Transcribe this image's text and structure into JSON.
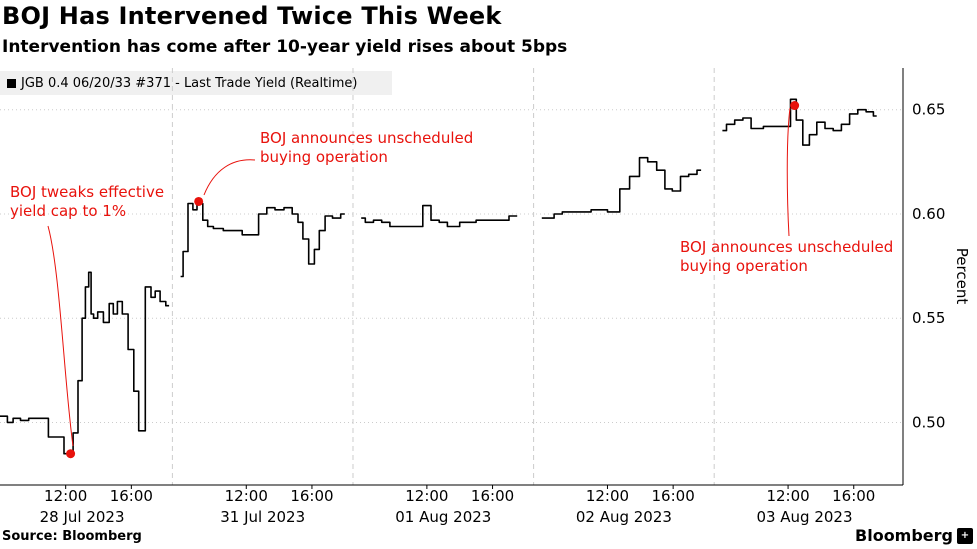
{
  "header": {
    "title": "BOJ Has Intervened Twice This Week",
    "subtitle": "Intervention has come after 10-year yield rises about 5bps"
  },
  "legend": {
    "label": "JGB 0.4 06/20/33 #371 - Last Trade Yield (Realtime)"
  },
  "footer": {
    "source": "Source: Bloomberg",
    "brand": "Bloomberg",
    "brand_mark": "+"
  },
  "colors": {
    "line": "#000000",
    "annotation": "#e8120c",
    "grid": "#cccccc"
  },
  "chart_data": {
    "type": "line",
    "title": "BOJ Has Intervened Twice This Week",
    "subtitle": "Intervention has come after 10-year yield rises about 5bps",
    "ylabel": "Percent",
    "ylim": [
      0.47,
      0.67
    ],
    "yticks": [
      {
        "value": 0.5,
        "label": "0.50"
      },
      {
        "value": 0.55,
        "label": "0.55"
      },
      {
        "value": 0.6,
        "label": "0.60"
      },
      {
        "value": 0.65,
        "label": "0.65"
      }
    ],
    "x_unit": "session hours (08:00-19:00 per trading day)",
    "xlim": [
      0,
      55
    ],
    "days": [
      {
        "label": "28 Jul 2023",
        "start": 0
      },
      {
        "label": "31 Jul 2023",
        "start": 11
      },
      {
        "label": "01 Aug 2023",
        "start": 22
      },
      {
        "label": "02 Aug 2023",
        "start": 33
      },
      {
        "label": "03 Aug 2023",
        "start": 44
      }
    ],
    "xticks": [
      {
        "x": 4,
        "label": "12:00"
      },
      {
        "x": 8,
        "label": "16:00"
      },
      {
        "x": 15,
        "label": "12:00"
      },
      {
        "x": 19,
        "label": "16:00"
      },
      {
        "x": 26,
        "label": "12:00"
      },
      {
        "x": 30,
        "label": "16:00"
      },
      {
        "x": 37,
        "label": "12:00"
      },
      {
        "x": 41,
        "label": "16:00"
      },
      {
        "x": 48,
        "label": "12:00"
      },
      {
        "x": 52,
        "label": "16:00"
      }
    ],
    "series": [
      {
        "name": "JGB 0.4 06/20/33 #371 - Last Trade Yield (Realtime)",
        "segments": [
          [
            [
              0.0,
              0.503
            ],
            [
              0.3,
              0.503
            ],
            [
              0.6,
              0.5
            ],
            [
              1.0,
              0.502
            ],
            [
              1.5,
              0.501
            ],
            [
              2.0,
              0.502
            ],
            [
              2.4,
              0.502
            ],
            [
              3.5,
              0.493
            ],
            [
              4.3,
              0.485
            ],
            [
              4.6,
              0.495
            ],
            [
              4.9,
              0.52
            ],
            [
              5.1,
              0.55
            ],
            [
              5.3,
              0.565
            ],
            [
              5.5,
              0.572
            ],
            [
              5.6,
              0.552
            ],
            [
              5.8,
              0.55
            ],
            [
              6.1,
              0.553
            ],
            [
              6.5,
              0.548
            ],
            [
              6.8,
              0.557
            ],
            [
              7.0,
              0.552
            ],
            [
              7.3,
              0.558
            ],
            [
              7.6,
              0.552
            ],
            [
              8.0,
              0.535
            ],
            [
              8.3,
              0.515
            ],
            [
              8.6,
              0.496
            ],
            [
              9.1,
              0.565
            ],
            [
              9.3,
              0.56
            ],
            [
              9.6,
              0.563
            ],
            [
              9.9,
              0.558
            ],
            [
              10.3,
              0.556
            ]
          ],
          [
            [
              11.0,
              0.57
            ],
            [
              11.3,
              0.582
            ],
            [
              11.6,
              0.605
            ],
            [
              11.9,
              0.602
            ],
            [
              12.1,
              0.607
            ],
            [
              12.2,
              0.605
            ],
            [
              12.5,
              0.597
            ],
            [
              12.8,
              0.594
            ],
            [
              13.2,
              0.593
            ],
            [
              14.0,
              0.592
            ],
            [
              15.5,
              0.59
            ],
            [
              16.0,
              0.6
            ],
            [
              16.5,
              0.603
            ],
            [
              17.0,
              0.602
            ],
            [
              17.6,
              0.603
            ],
            [
              18.0,
              0.6
            ],
            [
              18.3,
              0.596
            ],
            [
              18.6,
              0.588
            ],
            [
              19.0,
              0.576
            ],
            [
              19.3,
              0.583
            ],
            [
              19.6,
              0.592
            ],
            [
              20.0,
              0.599
            ],
            [
              20.5,
              0.598
            ],
            [
              21.0,
              0.6
            ]
          ],
          [
            [
              22.0,
              0.598
            ],
            [
              22.5,
              0.596
            ],
            [
              23.0,
              0.597
            ],
            [
              23.5,
              0.596
            ],
            [
              24.0,
              0.594
            ],
            [
              25.5,
              0.594
            ],
            [
              26.0,
              0.604
            ],
            [
              26.5,
              0.597
            ],
            [
              27.0,
              0.596
            ],
            [
              27.5,
              0.594
            ],
            [
              28.5,
              0.596
            ],
            [
              29.5,
              0.597
            ],
            [
              30.5,
              0.597
            ],
            [
              31.5,
              0.599
            ]
          ],
          [
            [
              33.0,
              0.598
            ],
            [
              33.5,
              0.598
            ],
            [
              34.0,
              0.6
            ],
            [
              34.5,
              0.601
            ],
            [
              35.5,
              0.601
            ],
            [
              36.5,
              0.602
            ],
            [
              37.5,
              0.601
            ],
            [
              38.0,
              0.612
            ],
            [
              38.7,
              0.618
            ],
            [
              39.2,
              0.627
            ],
            [
              39.7,
              0.625
            ],
            [
              40.3,
              0.621
            ],
            [
              40.7,
              0.612
            ],
            [
              41.2,
              0.611
            ],
            [
              41.7,
              0.618
            ],
            [
              42.2,
              0.619
            ],
            [
              42.7,
              0.621
            ]
          ],
          [
            [
              44.0,
              0.64
            ],
            [
              44.5,
              0.643
            ],
            [
              45.0,
              0.645
            ],
            [
              45.5,
              0.646
            ],
            [
              46.0,
              0.641
            ],
            [
              47.0,
              0.642
            ],
            [
              48.0,
              0.642
            ],
            [
              48.3,
              0.655
            ],
            [
              48.7,
              0.645
            ],
            [
              49.1,
              0.633
            ],
            [
              49.5,
              0.638
            ],
            [
              50.0,
              0.644
            ],
            [
              50.5,
              0.641
            ],
            [
              51.0,
              0.64
            ],
            [
              51.5,
              0.643
            ],
            [
              52.0,
              0.648
            ],
            [
              52.5,
              0.65
            ],
            [
              53.0,
              0.649
            ],
            [
              53.4,
              0.647
            ]
          ]
        ]
      }
    ],
    "markers": [
      {
        "x": 4.3,
        "y": 0.485
      },
      {
        "x": 12.1,
        "y": 0.606
      },
      {
        "x": 48.4,
        "y": 0.652
      }
    ],
    "annotations": [
      {
        "lines": [
          "BOJ tweaks effective",
          "yield cap to 1%"
        ],
        "target": 0
      },
      {
        "lines": [
          "BOJ announces unscheduled",
          "buying operation"
        ],
        "target": 1
      },
      {
        "lines": [
          "BOJ announces unscheduled",
          "buying operation"
        ],
        "target": 2
      }
    ]
  }
}
